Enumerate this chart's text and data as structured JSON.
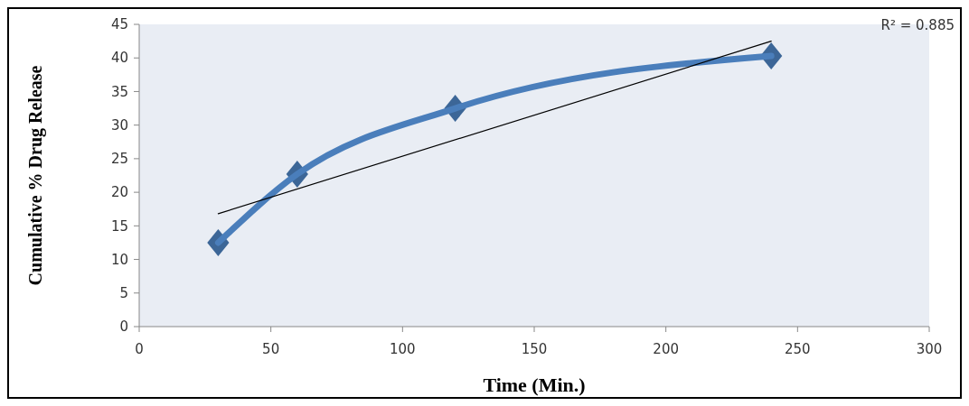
{
  "chart_data": {
    "type": "line",
    "xlabel": "Time (Min.)",
    "ylabel": "Cumulative % Drug Release",
    "xlim": [
      0,
      300
    ],
    "xticks": [
      0,
      50,
      100,
      150,
      200,
      250,
      300
    ],
    "ylim": [
      0,
      45
    ],
    "yticks": [
      0,
      5,
      10,
      15,
      20,
      25,
      30,
      35,
      40,
      45
    ],
    "grid": false,
    "marker": "diamond",
    "annotations": [
      "R² = 0.885"
    ],
    "series": [
      {
        "x": [
          30,
          60,
          120,
          240
        ],
        "values": [
          12.5,
          22.7,
          32.5,
          40.3
        ],
        "color": "#4a7ebb"
      },
      {
        "type": "line",
        "x": [
          30,
          240
        ],
        "values": [
          16.8,
          42.5
        ],
        "color": "#000000",
        "marker": "none"
      }
    ]
  }
}
